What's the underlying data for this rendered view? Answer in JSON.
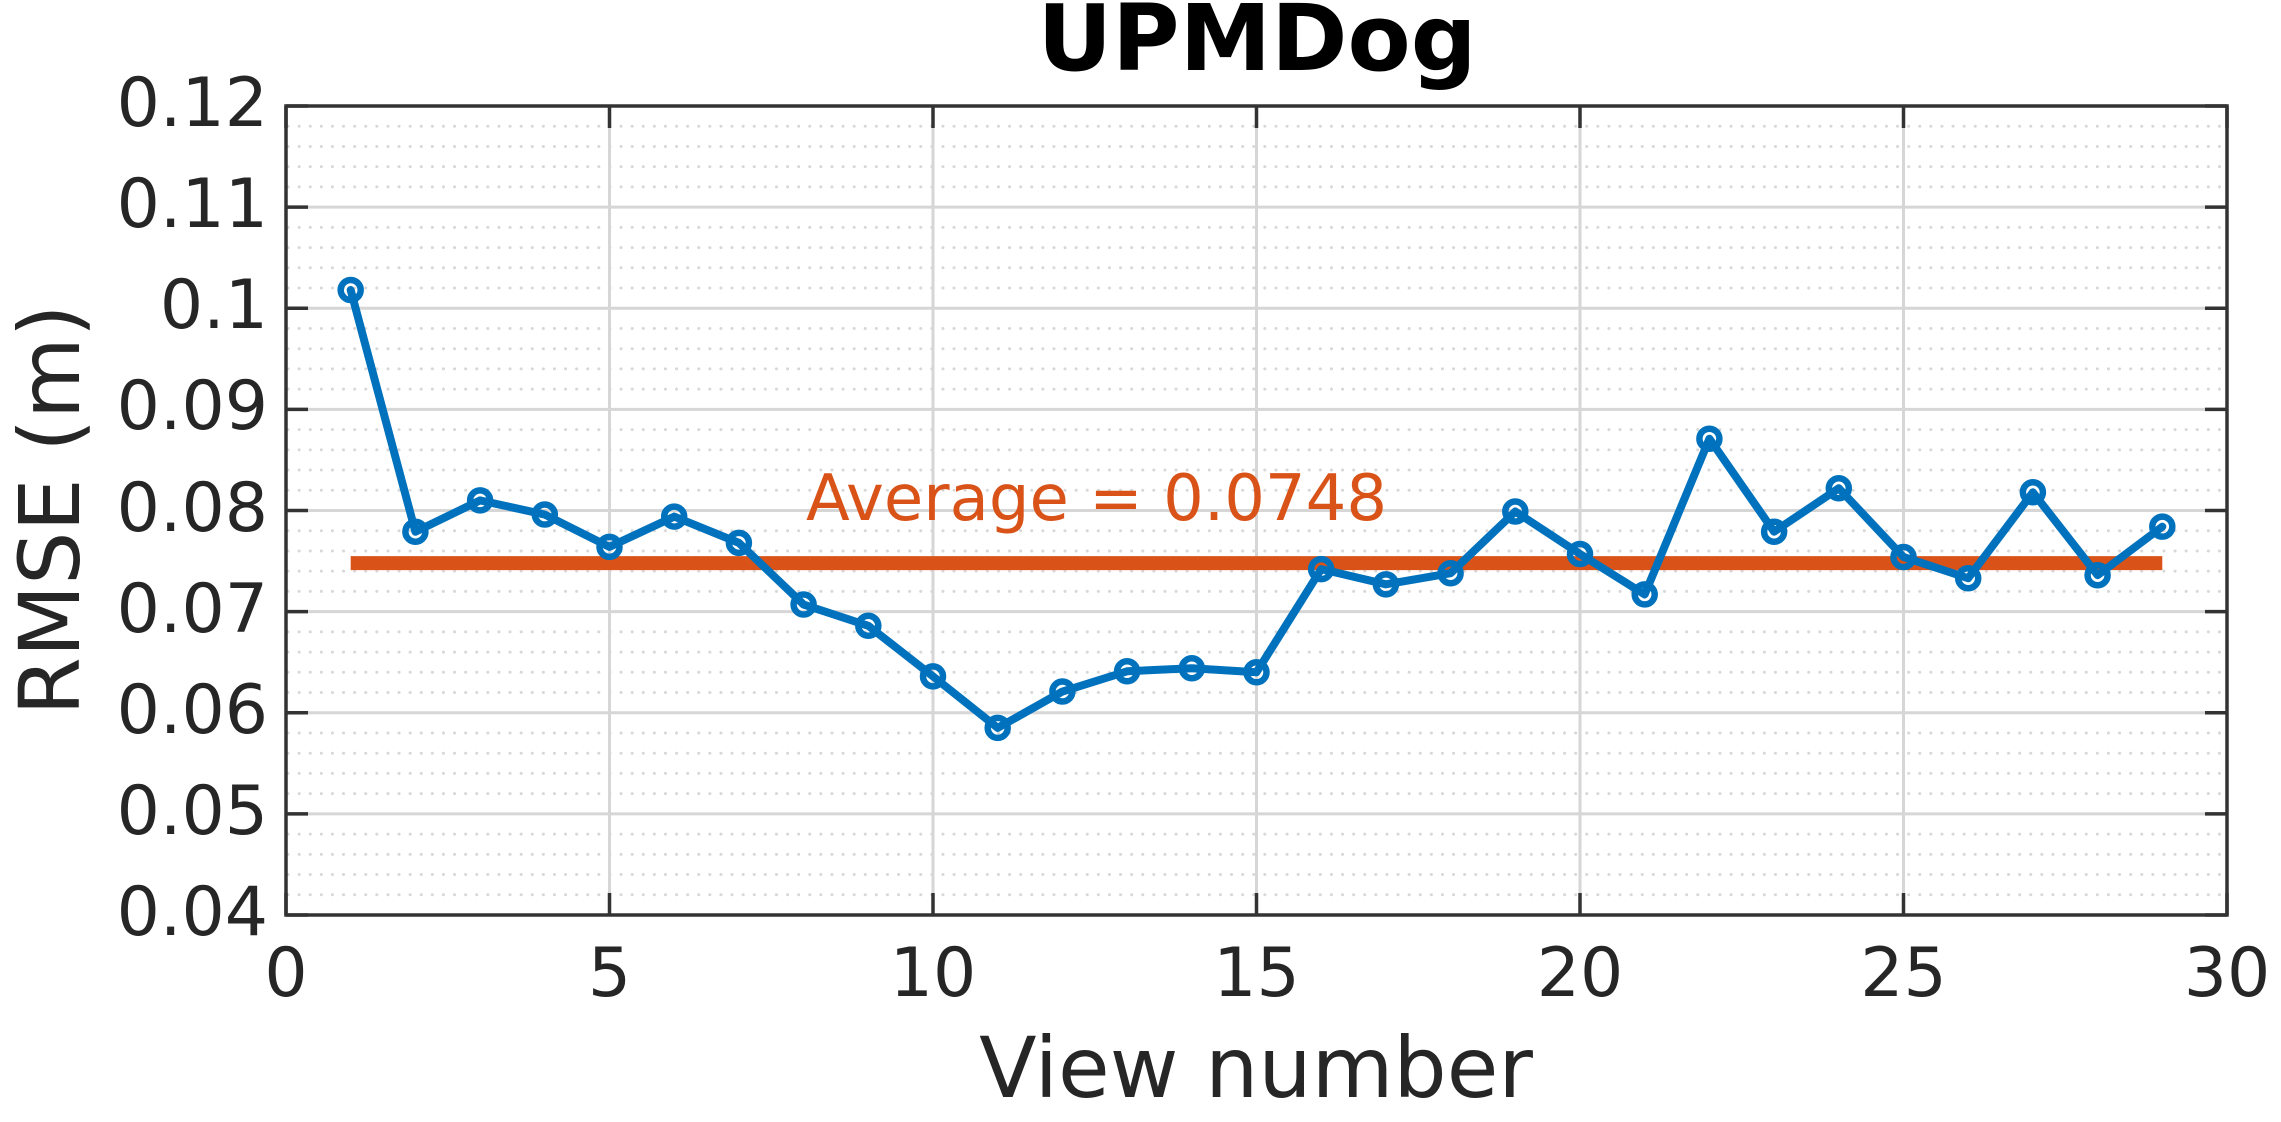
{
  "figure": {
    "title": "UPMDog"
  },
  "chart_data": {
    "type": "line",
    "title": "UPMDog",
    "xlabel": "View number",
    "ylabel": "RMSE (m)",
    "x": [
      1,
      2,
      3,
      4,
      5,
      6,
      7,
      8,
      9,
      10,
      11,
      12,
      13,
      14,
      15,
      16,
      17,
      18,
      19,
      20,
      21,
      22,
      23,
      24,
      25,
      26,
      27,
      28,
      29
    ],
    "values": [
      0.1018,
      0.0779,
      0.081,
      0.0796,
      0.0764,
      0.0794,
      0.0768,
      0.0707,
      0.0686,
      0.0636,
      0.0585,
      0.0621,
      0.0641,
      0.0644,
      0.064,
      0.0742,
      0.0727,
      0.0738,
      0.0799,
      0.0757,
      0.0717,
      0.0871,
      0.0779,
      0.0822,
      0.0754,
      0.0733,
      0.0818,
      0.0736,
      0.0784
    ],
    "average": 0.0748,
    "annotation": "Average = 0.0748",
    "xlim": [
      0,
      30
    ],
    "ylim": [
      0.04,
      0.12
    ],
    "x_ticks": [
      0,
      5,
      10,
      15,
      20,
      25,
      30
    ],
    "x_tick_labels": [
      "0",
      "5",
      "10",
      "15",
      "20",
      "25",
      "30"
    ],
    "y_ticks": [
      0.04,
      0.05,
      0.06,
      0.07,
      0.08,
      0.09,
      0.1,
      0.11,
      0.12
    ],
    "y_tick_labels": [
      "0.04",
      "0.05",
      "0.06",
      "0.07",
      "0.08",
      "0.09",
      "0.1",
      "0.11",
      "0.12"
    ],
    "y_minor_step": 0.002,
    "grid": "major x+y solid, minor y dotted",
    "legend": "none",
    "marker": "open-circle",
    "series_color": "#0072BD",
    "average_color": "#D95319",
    "axis_color": "#333333",
    "label_color": "#262626",
    "major_grid_color": "#d6d6d6",
    "minor_grid_color": "#c4c4c4"
  }
}
